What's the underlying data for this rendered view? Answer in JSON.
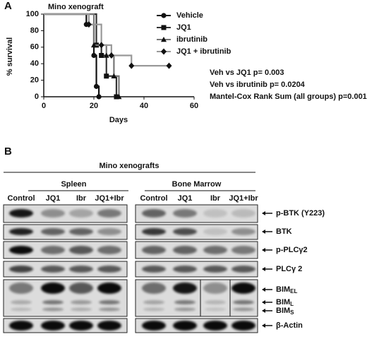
{
  "chart_data": {
    "type": "survival",
    "panel_label": "A",
    "title": "Mino xenograft",
    "xlabel": "Days",
    "ylabel": "% survival",
    "xlim": [
      0,
      60
    ],
    "xticks": [
      0,
      20,
      40,
      60
    ],
    "ylim": [
      0,
      100
    ],
    "yticks": [
      0,
      20,
      40,
      60,
      80,
      100
    ],
    "series": [
      {
        "name": "Vehicle",
        "color": "#111111",
        "marker": "circle",
        "x": [
          0,
          17,
          20,
          21,
          22
        ],
        "values": [
          100,
          87.5,
          50,
          12.5,
          0
        ]
      },
      {
        "name": "JQ1",
        "color": "#333333",
        "marker": "square",
        "x": [
          0,
          21,
          23,
          25,
          29
        ],
        "values": [
          100,
          62.5,
          50,
          25,
          0
        ]
      },
      {
        "name": "ibrutinib",
        "color": "#777777",
        "marker": "triangle",
        "x": [
          0,
          20,
          25,
          28,
          30
        ],
        "values": [
          100,
          62.5,
          50,
          25,
          0
        ]
      },
      {
        "name": "JQ1 + ibrutinib",
        "color": "#999999",
        "marker": "diamond",
        "x": [
          0,
          18,
          23,
          27,
          35,
          50
        ],
        "values": [
          100,
          87.5,
          62.5,
          50,
          37.5,
          37.5
        ]
      }
    ],
    "annotations": [
      "Veh vs JQ1 p= 0.003",
      "Veh vs  ibrutinib p= 0.0204",
      "Mantel-Cox Rank Sum (all groups)  p=0.0013"
    ]
  },
  "blot": {
    "panel_label": "B",
    "title": "Mino xenografts",
    "tissues": [
      {
        "name": "Spleen",
        "lanes": [
          "Control",
          "JQ1",
          "Ibr",
          "JQ1+Ibr"
        ]
      },
      {
        "name": "Bone Marrow",
        "lanes": [
          "Control",
          "JQ1",
          "Ibr",
          "JQ1+Ibr"
        ]
      }
    ],
    "proteins": [
      "p-BTK (Y223)",
      "BTK",
      "p-PLCγ2",
      "PLCγ 2"
    ],
    "bim": [
      {
        "base": "BIM",
        "sub": "EL"
      },
      {
        "base": "BIM",
        "sub": "L"
      },
      {
        "base": "BIM",
        "sub": "S"
      }
    ],
    "loading": "β-Actin"
  }
}
